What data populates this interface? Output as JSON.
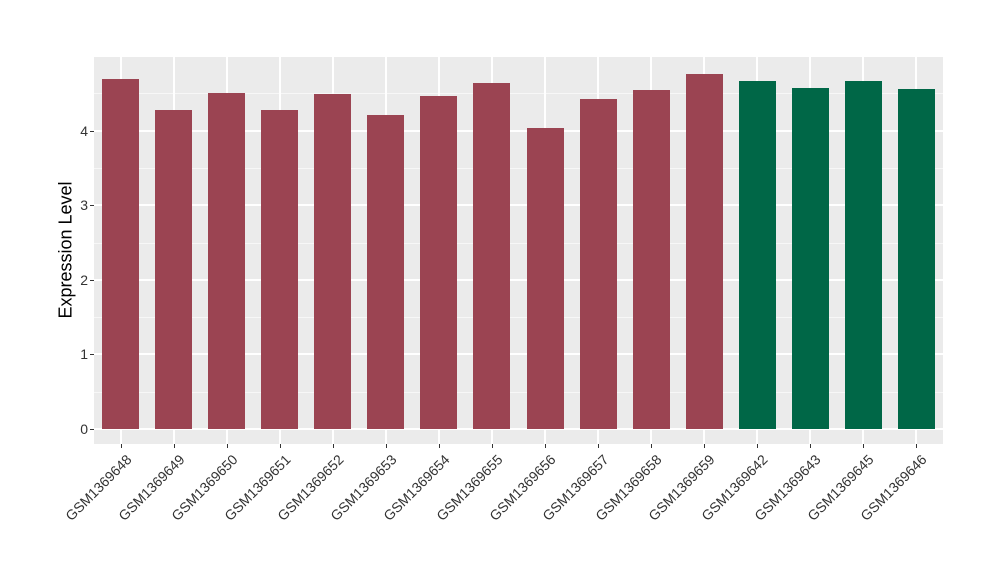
{
  "figure": {
    "background": "#ffffff",
    "panel_background": "#ebebeb",
    "grid_major_color": "#ffffff",
    "grid_minor_color": "#f7f7f7",
    "tick_color": "#333333",
    "axis_text_color": "#333333",
    "axis_title_color": "#000000",
    "bar_color_main": "#9b4452",
    "bar_color_highlight": "#006747"
  },
  "chart_data": {
    "type": "bar",
    "title": "",
    "xlabel": "",
    "ylabel": "Expression Level",
    "ylim": [
      -0.2,
      5.0
    ],
    "yticks": [
      0,
      1,
      2,
      3,
      4
    ],
    "grid": "on",
    "legend_position": "none",
    "x_label_angle": 45,
    "categories": [
      "GSM1369648",
      "GSM1369649",
      "GSM1369650",
      "GSM1369651",
      "GSM1369652",
      "GSM1369653",
      "GSM1369654",
      "GSM1369655",
      "GSM1369656",
      "GSM1369657",
      "GSM1369658",
      "GSM1369659",
      "GSM1369642",
      "GSM1369643",
      "GSM1369645",
      "GSM1369646"
    ],
    "values": [
      4.69,
      4.27,
      4.5,
      4.27,
      4.49,
      4.21,
      4.46,
      4.64,
      4.03,
      4.43,
      4.55,
      4.76,
      4.66,
      4.57,
      4.67,
      4.56
    ],
    "bar_colors": [
      "#9b4452",
      "#9b4452",
      "#9b4452",
      "#9b4452",
      "#9b4452",
      "#9b4452",
      "#9b4452",
      "#9b4452",
      "#9b4452",
      "#9b4452",
      "#9b4452",
      "#9b4452",
      "#006747",
      "#006747",
      "#006747",
      "#006747"
    ]
  }
}
